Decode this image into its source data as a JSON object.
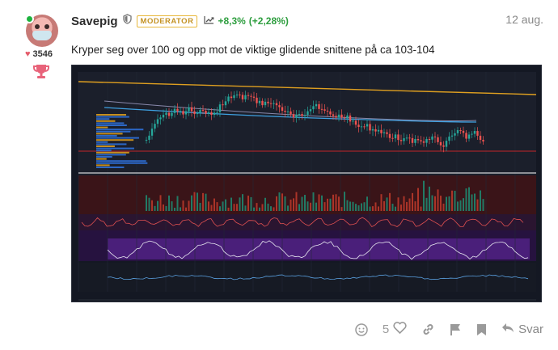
{
  "post": {
    "username": "Savepig",
    "role_badge": "MODERATOR",
    "stock_change": "+8,3%",
    "stock_change_paren": "(+2,28%)",
    "date": "12 aug.",
    "likes_count": "3546",
    "text": "Kryper seg over 100 og opp mot de viktige glidende snittene på ca 103-104",
    "like_count": "5",
    "reply_label": "Svar"
  },
  "colors": {
    "badge": "#e8b83b",
    "positive": "#2e9e3f",
    "online": "#1db33e",
    "heart": "#e45b6a",
    "trophy": "#e8637a",
    "chart_bg": "#141823"
  },
  "icons": [
    "shield-icon",
    "trend-icon",
    "heart-icon",
    "trophy-icon",
    "smile-icon",
    "like-heart-icon",
    "link-icon",
    "flag-icon",
    "bookmark-icon",
    "reply-icon"
  ]
}
